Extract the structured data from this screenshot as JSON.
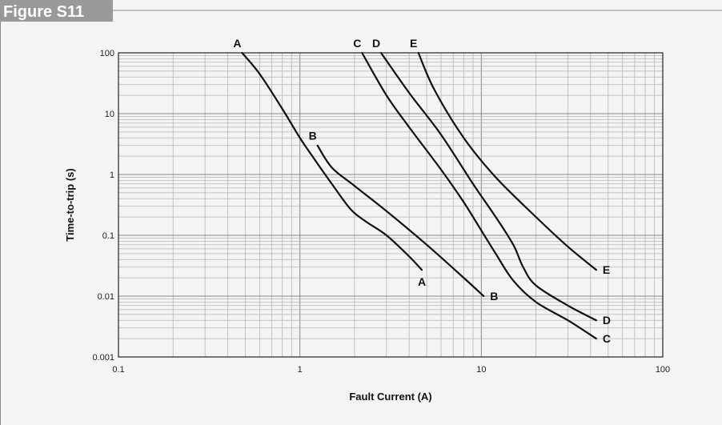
{
  "figure_label": "Figure S11",
  "chart_data": {
    "type": "line",
    "xlabel": "Fault Current (A)",
    "ylabel": "Time-to-trip (s)",
    "xscale": "log",
    "yscale": "log",
    "xlim": [
      0.1,
      100
    ],
    "ylim": [
      0.001,
      100
    ],
    "x_ticks": [
      "0.1",
      "1",
      "10",
      "100"
    ],
    "y_ticks": [
      "0.001",
      "0.01",
      "0.1",
      "1",
      "10",
      "100"
    ],
    "grid": true,
    "series": [
      {
        "name": "A",
        "start_label": "A",
        "end_label": "A",
        "x": [
          0.48,
          0.6,
          0.8,
          1.0,
          1.2,
          1.5,
          1.9,
          2.3,
          3.0,
          4.0,
          4.7
        ],
        "y": [
          100,
          45,
          12,
          4.0,
          1.8,
          0.7,
          0.27,
          0.17,
          0.1,
          0.045,
          0.027
        ]
      },
      {
        "name": "B",
        "start_label": "B",
        "end_label": "B",
        "x": [
          1.25,
          1.5,
          2.0,
          3.0,
          5.0,
          8.0,
          10.3
        ],
        "y": [
          3.0,
          1.3,
          0.65,
          0.25,
          0.07,
          0.02,
          0.01
        ]
      },
      {
        "name": "C",
        "start_label": "C",
        "end_label": "C",
        "x": [
          2.2,
          3.0,
          4.0,
          6.0,
          8.0,
          10.0,
          12.0,
          15.0,
          20.0,
          30.0,
          43.0
        ],
        "y": [
          100,
          20,
          6.0,
          1.2,
          0.35,
          0.12,
          0.05,
          0.018,
          0.008,
          0.004,
          0.002
        ]
      },
      {
        "name": "D",
        "start_label": "D",
        "end_label": "D",
        "x": [
          2.8,
          4.0,
          6.0,
          9.0,
          12.0,
          15.0,
          17.0,
          20.0,
          30.0,
          43.0
        ],
        "y": [
          100,
          22,
          4.5,
          0.7,
          0.2,
          0.07,
          0.03,
          0.015,
          0.007,
          0.004
        ]
      },
      {
        "name": "E",
        "start_label": "E",
        "end_label": "E",
        "x": [
          4.5,
          5.5,
          8.0,
          12.0,
          20.0,
          30.0,
          43.0
        ],
        "y": [
          100,
          25,
          4.0,
          0.9,
          0.2,
          0.065,
          0.027
        ]
      }
    ]
  }
}
